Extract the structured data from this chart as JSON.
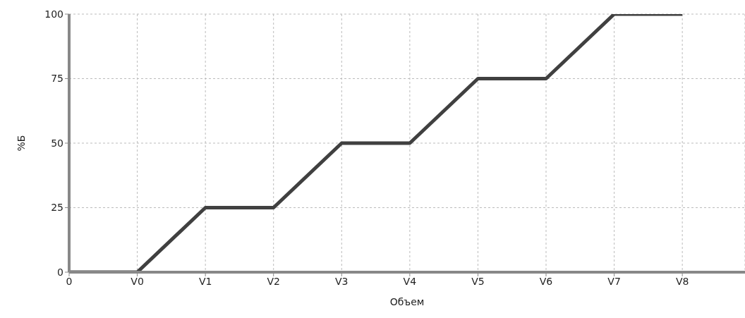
{
  "chart_data": {
    "type": "line",
    "xlabel": "Объем",
    "ylabel": "%Б",
    "categories": [
      "0",
      "V0",
      "V1",
      "V2",
      "V3",
      "V4",
      "V5",
      "V6",
      "V7",
      "V8"
    ],
    "series": [
      {
        "color": "#404040",
        "values": [
          0,
          0,
          25,
          25,
          50,
          50,
          75,
          75,
          100,
          100
        ]
      }
    ],
    "ylim": [
      0,
      100
    ],
    "yticks": [
      0,
      25,
      50,
      75,
      100
    ],
    "grid": true,
    "marker": "none",
    "line_style": "solid"
  }
}
